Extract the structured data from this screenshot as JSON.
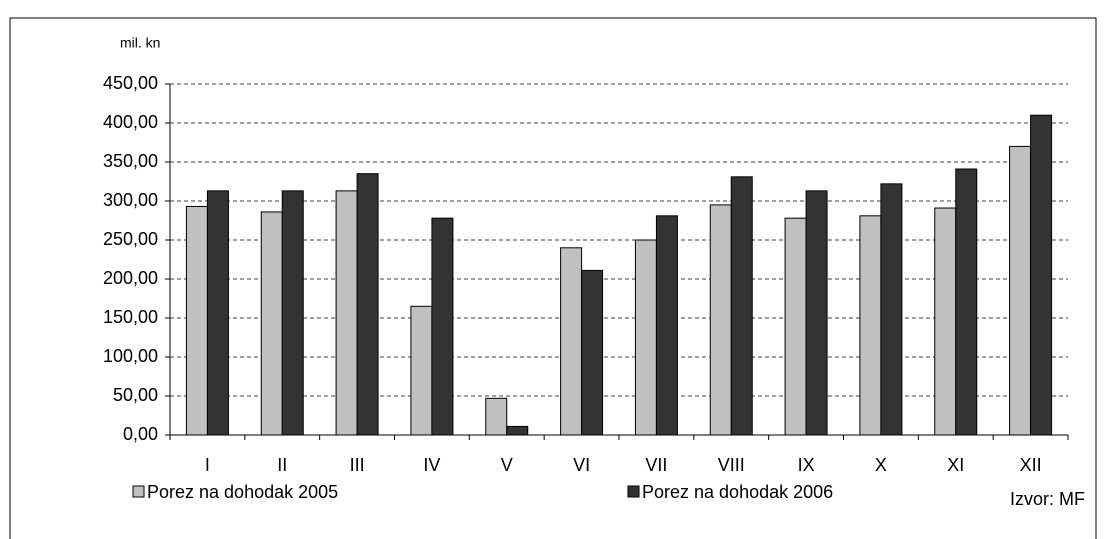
{
  "chart_data": {
    "type": "bar",
    "unit_label": "mil. kn",
    "source": "Izvor: MF",
    "categories": [
      "I",
      "II",
      "III",
      "IV",
      "V",
      "VI",
      "VII",
      "VIII",
      "IX",
      "X",
      "XI",
      "XII"
    ],
    "series": [
      {
        "name": "Porez na dohodak 2005",
        "color": "#c0c0c0",
        "values": [
          293,
          286,
          313,
          165,
          47,
          240,
          250,
          295,
          278,
          281,
          291,
          370
        ]
      },
      {
        "name": "Porez na dohodak 2006",
        "color": "#333333",
        "values": [
          313,
          313,
          335,
          278,
          11,
          211,
          281,
          331,
          313,
          322,
          341,
          410
        ]
      }
    ],
    "ylim": [
      0,
      450
    ],
    "yticks": [
      {
        "value": 0,
        "label": "0,00"
      },
      {
        "value": 50,
        "label": "50,00"
      },
      {
        "value": 100,
        "label": "100,00"
      },
      {
        "value": 150,
        "label": "150,00"
      },
      {
        "value": 200,
        "label": "200,00"
      },
      {
        "value": 250,
        "label": "250,00"
      },
      {
        "value": 300,
        "label": "300,00"
      },
      {
        "value": 350,
        "label": "350,00"
      },
      {
        "value": 400,
        "label": "400,00"
      },
      {
        "value": 450,
        "label": "450,00"
      }
    ],
    "grid": true
  }
}
